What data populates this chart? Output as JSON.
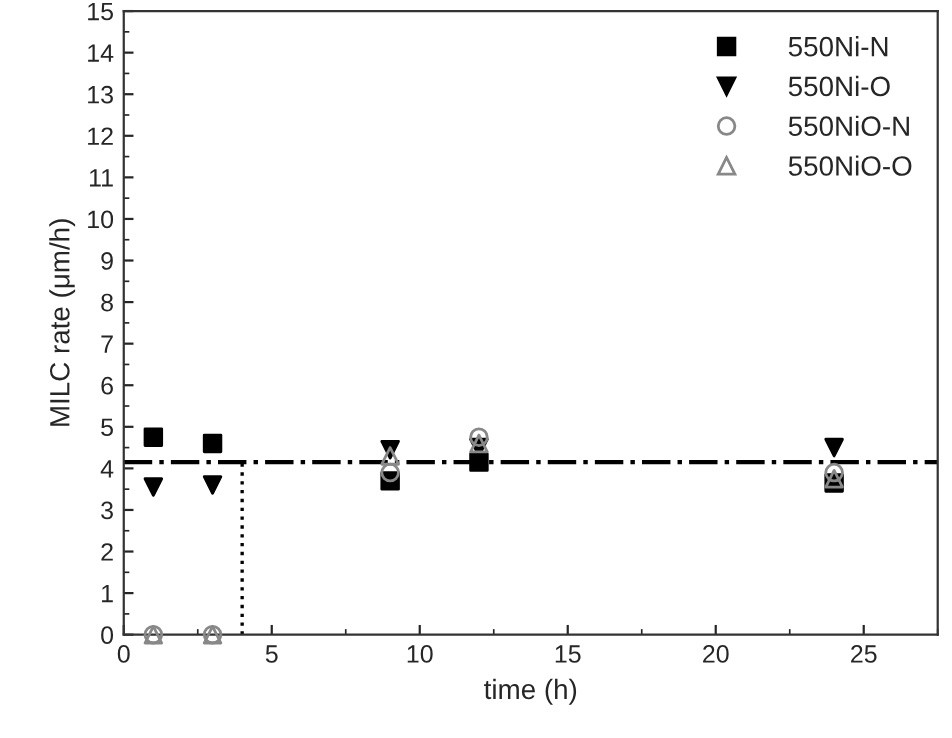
{
  "chart_data": {
    "type": "scatter",
    "xlabel": "time (h)",
    "ylabel": "MILC rate (μm/h)",
    "x": [
      1,
      3,
      9,
      12,
      24
    ],
    "series": [
      {
        "name": "550Ni-N",
        "color": "#000000",
        "marker": "square",
        "values": [
          4.75,
          4.6,
          3.7,
          4.15,
          3.65
        ]
      },
      {
        "name": "550Ni-O",
        "color": "#000000",
        "marker": "triangle_down",
        "values": [
          3.55,
          3.6,
          4.45,
          4.5,
          4.5
        ]
      },
      {
        "name": "550NiO-N",
        "color": "#888888",
        "marker": "circle",
        "values": [
          0,
          0,
          3.9,
          4.75,
          3.9
        ]
      },
      {
        "name": "550NiO-O",
        "color": "#888888",
        "marker": "triangle",
        "values": [
          0,
          0,
          4.3,
          4.6,
          3.75
        ]
      }
    ],
    "ref_lines": [
      {
        "axis": "y",
        "value": 4.15,
        "color": "#000000",
        "line_style": "dashdot"
      },
      {
        "axis": "x",
        "value": 4,
        "color": "#000000",
        "line_style": "dotted"
      }
    ],
    "xlim": [
      0,
      27.5
    ],
    "xticks": [
      0,
      5,
      10,
      15,
      20,
      25
    ],
    "ylim": [
      0,
      15
    ],
    "yticks": [
      0,
      1,
      2,
      3,
      4,
      5,
      6,
      7,
      8,
      9,
      10,
      11,
      12,
      13,
      14,
      15
    ],
    "legend": "top right",
    "grid": false
  }
}
